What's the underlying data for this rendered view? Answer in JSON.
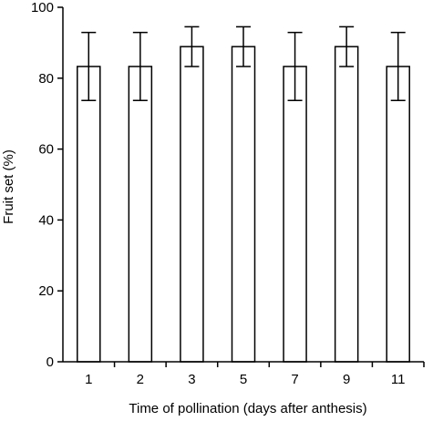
{
  "chart_data": {
    "type": "bar",
    "title": "",
    "xlabel": "Time of pollination (days after anthesis)",
    "ylabel": "Fruit set (%)",
    "categories": [
      "1",
      "2",
      "3",
      "5",
      "7",
      "9",
      "11"
    ],
    "series": [
      {
        "values": [
          83.3,
          83.3,
          88.9,
          88.9,
          83.3,
          88.9,
          83.3
        ],
        "error": [
          9.6,
          9.6,
          5.6,
          5.6,
          9.6,
          5.6,
          9.6
        ]
      }
    ],
    "ylim": [
      0,
      100
    ],
    "yticks": [
      0,
      20,
      40,
      60,
      80,
      100
    ],
    "grid": false,
    "legend": "none",
    "colors": {
      "bar_fill": "#ffffff",
      "bar_stroke": "#000000",
      "axis": "#000000"
    }
  }
}
